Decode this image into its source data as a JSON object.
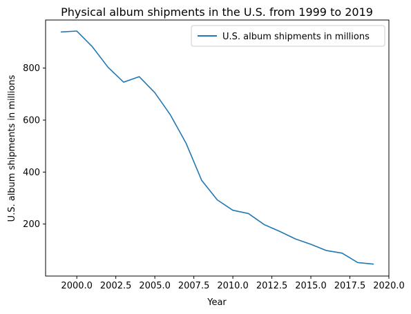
{
  "chart_data": {
    "type": "line",
    "title": "Physical album shipments in the U.S. from 1999 to 2019",
    "xlabel": "Year",
    "ylabel": "U.S. album shipments in millions",
    "xlim": [
      1998.0,
      2020.0
    ],
    "ylim": [
      0,
      985
    ],
    "xticks": [
      2000.0,
      2002.5,
      2005.0,
      2007.5,
      2010.0,
      2012.5,
      2015.0,
      2017.5,
      2020.0
    ],
    "xtick_labels": [
      "2000.0",
      "2002.5",
      "2005.0",
      "2007.5",
      "2010.0",
      "2012.5",
      "2015.0",
      "2017.5",
      "2020.0"
    ],
    "yticks": [
      200,
      400,
      600,
      800
    ],
    "ytick_labels": [
      "200",
      "400",
      "600",
      "800"
    ],
    "grid": false,
    "legend_position": "top-right",
    "series": [
      {
        "name": "U.S. album shipments in millions",
        "color": "#1f77b4",
        "x": [
          1999,
          2000,
          2001,
          2002,
          2003,
          2004,
          2005,
          2006,
          2007,
          2008,
          2009,
          2010,
          2011,
          2012,
          2013,
          2014,
          2015,
          2016,
          2017,
          2018,
          2019
        ],
        "y": [
          938.9,
          942.5,
          881.9,
          803.3,
          745.9,
          767.0,
          705.4,
          619.7,
          511.1,
          368.4,
          293.0,
          253.0,
          240.5,
          198.2,
          172.0,
          143.0,
          122.0,
          98.0,
          88.0,
          52.0,
          46.0
        ]
      }
    ]
  }
}
